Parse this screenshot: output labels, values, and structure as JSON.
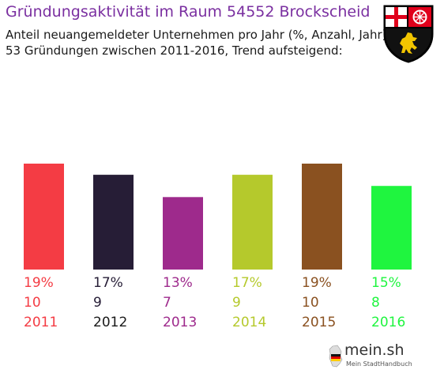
{
  "title": "Gründungsaktivität im Raum 54552 Brockscheid",
  "subtitle_line1": "Anteil neuangemeldeter Unternehmen pro Jahr (%, Anzahl, Jahr)",
  "subtitle_line2": "53 Gründungen zwischen 2011-2016, Trend aufsteigend:",
  "logo": {
    "name": "mein.sh",
    "tagline": "Mein StadtHandbuch"
  },
  "chart_data": {
    "type": "bar",
    "categories": [
      "2011",
      "2012",
      "2013",
      "2014",
      "2015",
      "2016"
    ],
    "values": [
      19,
      17,
      13,
      17,
      19,
      15
    ],
    "counts": [
      10,
      9,
      7,
      9,
      10,
      8
    ],
    "percent_labels": [
      "19%",
      "17%",
      "13%",
      "17%",
      "19%",
      "15%"
    ],
    "count_labels": [
      "10",
      "9",
      "7",
      "9",
      "10",
      "8"
    ],
    "colors": [
      "#f43c44",
      "#261d36",
      "#9e2a8c",
      "#b5c92c",
      "#8a5120",
      "#1ff53f"
    ],
    "ylim": [
      0,
      19
    ]
  }
}
